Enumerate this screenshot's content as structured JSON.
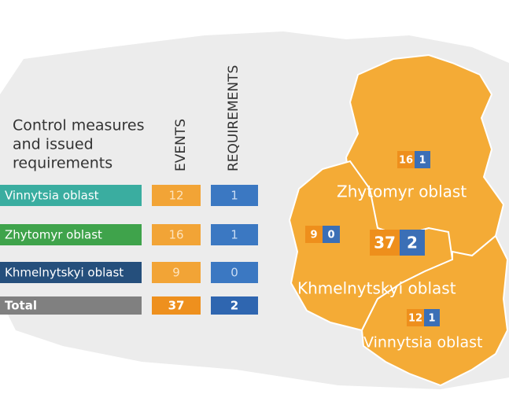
{
  "table": {
    "title": [
      "Control measures",
      "and issued",
      "requirements"
    ],
    "columns": [
      "EVENTS",
      "REQUIREMENTS"
    ],
    "rows": [
      [
        "Vinnytsia oblast",
        "12",
        "1"
      ],
      [
        "Zhytomyr oblast",
        "16",
        "1"
      ],
      [
        "Khmelnytskyi oblast",
        "9",
        "0"
      ],
      [
        "Total",
        "37",
        "2"
      ]
    ]
  },
  "map": {
    "regions": [
      {
        "name": "Zhytomyr oblast",
        "events": "16",
        "requirements": "1"
      },
      {
        "name": "Khmelnytskyi oblast",
        "events": "9",
        "requirements": "0"
      },
      {
        "name": "Vinnytsia oblast",
        "events": "12",
        "requirements": "1"
      }
    ],
    "total": {
      "events": "37",
      "requirements": "2"
    }
  }
}
